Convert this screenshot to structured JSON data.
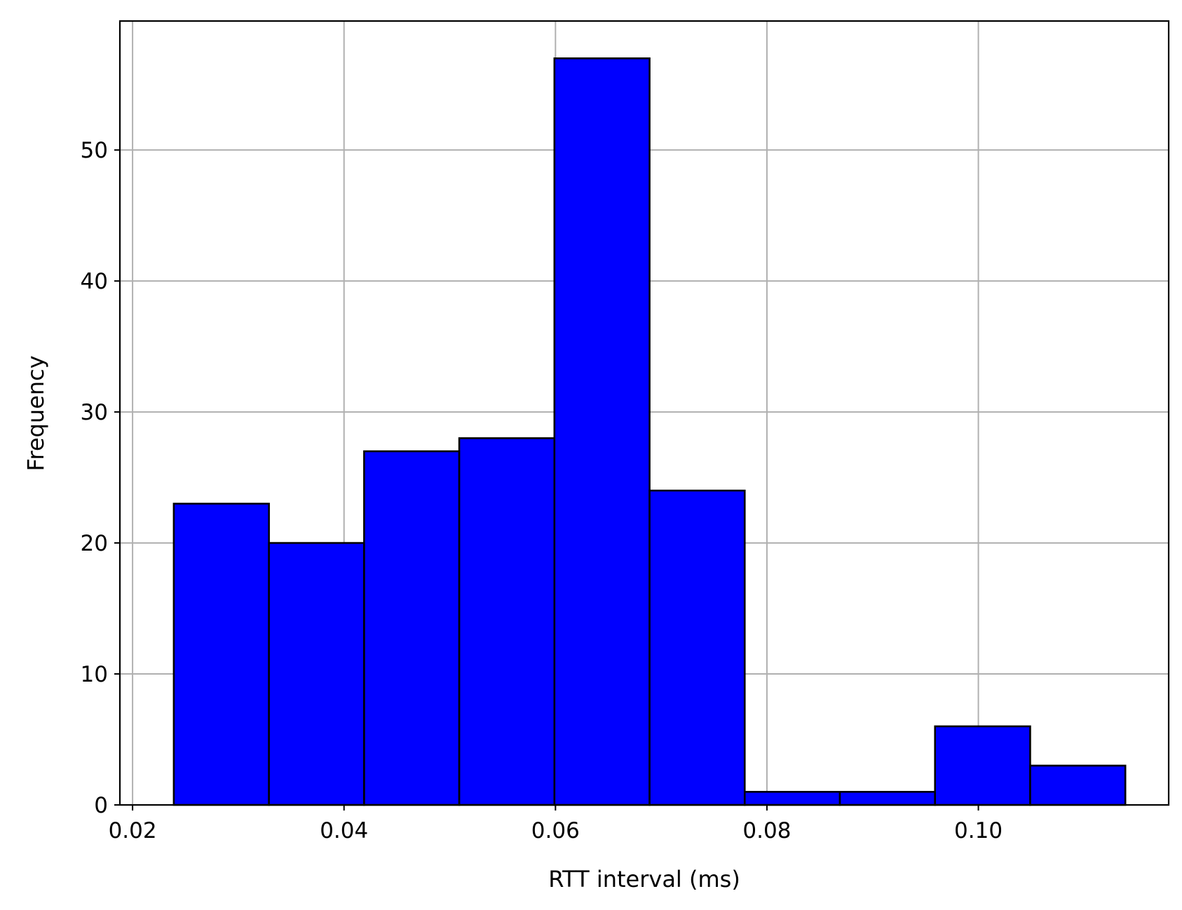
{
  "chart_data": {
    "type": "bar",
    "subtype": "histogram",
    "title": "",
    "xlabel": "RTT interval (ms)",
    "ylabel": "Frequency",
    "xlim": [
      0.0188,
      0.118
    ],
    "ylim": [
      0,
      59.85
    ],
    "x_ticks": [
      {
        "value": 0.02,
        "label": "0.02"
      },
      {
        "value": 0.04,
        "label": "0.04"
      },
      {
        "value": 0.06,
        "label": "0.06"
      },
      {
        "value": 0.08,
        "label": "0.08"
      },
      {
        "value": 0.1,
        "label": "0.10"
      }
    ],
    "y_ticks": [
      {
        "value": 0,
        "label": "0"
      },
      {
        "value": 10,
        "label": "10"
      },
      {
        "value": 20,
        "label": "20"
      },
      {
        "value": 30,
        "label": "30"
      },
      {
        "value": 40,
        "label": "40"
      },
      {
        "value": 50,
        "label": "50"
      }
    ],
    "grid": true,
    "bar_color": "#0000ff",
    "edge_color": "#000000",
    "bins": [
      {
        "x0": 0.0239,
        "x1": 0.0329,
        "value": 23
      },
      {
        "x0": 0.0329,
        "x1": 0.0419,
        "value": 20
      },
      {
        "x0": 0.0419,
        "x1": 0.0509,
        "value": 27
      },
      {
        "x0": 0.0509,
        "x1": 0.0599,
        "value": 28
      },
      {
        "x0": 0.0599,
        "x1": 0.0689,
        "value": 57
      },
      {
        "x0": 0.0689,
        "x1": 0.0779,
        "value": 24
      },
      {
        "x0": 0.0779,
        "x1": 0.0869,
        "value": 1
      },
      {
        "x0": 0.0869,
        "x1": 0.0959,
        "value": 1
      },
      {
        "x0": 0.0959,
        "x1": 0.1049,
        "value": 6
      },
      {
        "x0": 0.1049,
        "x1": 0.1139,
        "value": 3
      }
    ]
  }
}
